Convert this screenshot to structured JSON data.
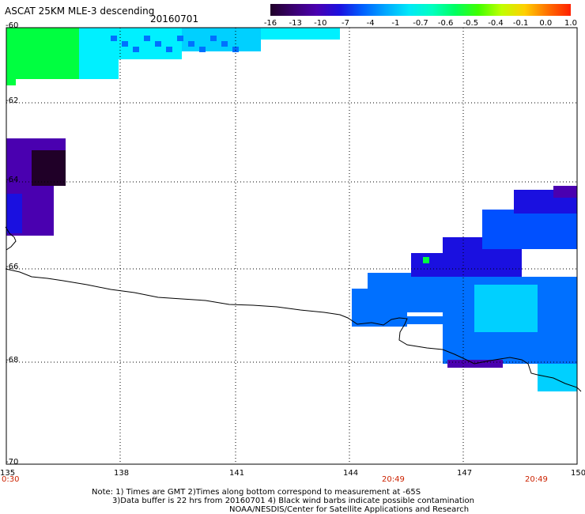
{
  "title": "ASCAT 25KM MLE-3 descending",
  "date": "20160701",
  "colorbar": {
    "ticks": [
      "-16",
      "-13",
      "-10",
      "-7",
      "-4",
      "-1",
      "-0.7",
      "-0.6",
      "-0.5",
      "-0.4",
      "-0.1",
      "0.0",
      "1.0"
    ],
    "colors": [
      "#200028",
      "#3a0070",
      "#4a00b0",
      "#1a10e0",
      "#0060ff",
      "#00a8ff",
      "#00e8f8",
      "#00ffc0",
      "#00ff60",
      "#40ff00",
      "#c0ff00",
      "#ffd000",
      "#ff7000",
      "#ff2000"
    ]
  },
  "lat_labels": [
    "-60",
    "-62",
    "-64",
    "-66",
    "-68",
    "-70"
  ],
  "lon_labels": [
    "135",
    "138",
    "141",
    "144",
    "147",
    "150"
  ],
  "time_labels": [
    "0:30",
    "20:49",
    "20:49"
  ],
  "notes": [
    "Note: 1) Times are GMT 2)Times along bottom correspond to measurement at -65S",
    "3)Data buffer is 22 hrs from 20160701 4) Black wind barbs indicate possible contamination",
    "NOAA/NESDIS/Center for Satellite Applications and Research"
  ]
}
